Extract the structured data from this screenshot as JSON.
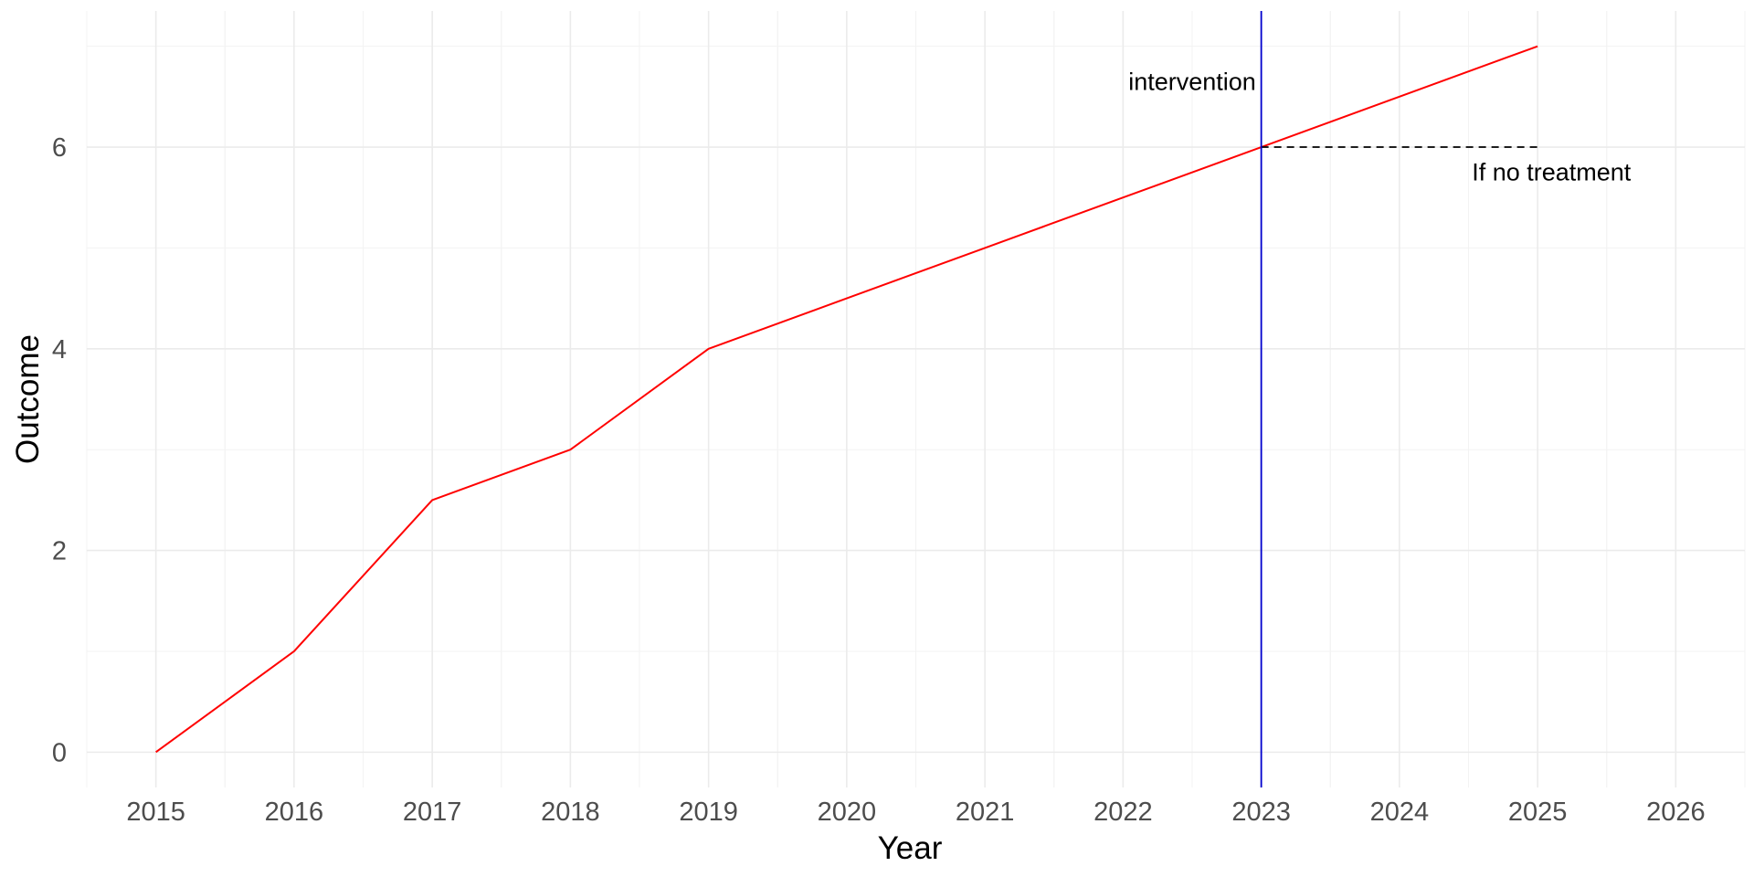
{
  "chart_data": {
    "type": "line",
    "title": "",
    "xlabel": "Year",
    "ylabel": "Outcome",
    "xlim": [
      2014.5,
      2026.5
    ],
    "ylim": [
      -0.35,
      7.35
    ],
    "x_ticks": [
      2015,
      2016,
      2017,
      2018,
      2019,
      2020,
      2021,
      2022,
      2023,
      2024,
      2025,
      2026
    ],
    "y_ticks": [
      0,
      2,
      4,
      6
    ],
    "grid": true,
    "legend": "none",
    "series": [
      {
        "x": [
          2015,
          2016,
          2017,
          2018,
          2019,
          2020,
          2021,
          2022,
          2023,
          2024,
          2025
        ],
        "y": [
          0,
          1,
          2.5,
          3,
          4,
          4.5,
          5,
          5.5,
          6,
          6.5,
          7
        ],
        "color": "#ff0000"
      }
    ],
    "counterfactual": {
      "x": [
        2023,
        2025
      ],
      "y": [
        6,
        6
      ],
      "color": "#000000",
      "linestyle": "dashed"
    },
    "vline": {
      "x": 2023,
      "color": "#0000cd"
    },
    "annotations": [
      {
        "text": "intervention",
        "x": 2022.5,
        "y": 6.65
      },
      {
        "text": "If no treatment",
        "x": 2025.1,
        "y": 5.75
      }
    ]
  }
}
